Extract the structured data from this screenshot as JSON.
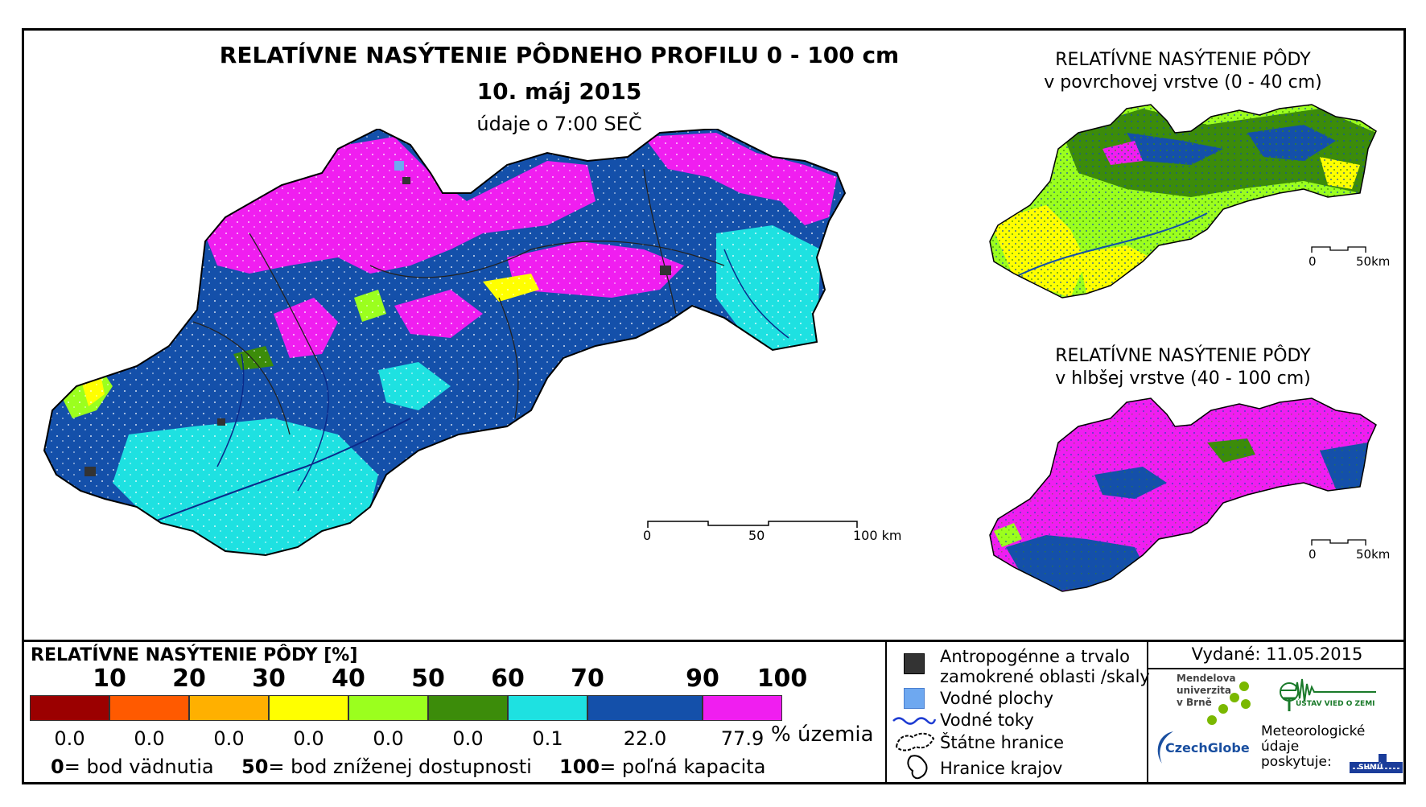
{
  "main": {
    "title": "RELATÍVNE NASÝTENIE PÔDNEHO PROFILU 0 - 100 cm",
    "date": "10. máj 2015",
    "time_note": "údaje o 7:00 SEČ",
    "scale": {
      "labels": [
        "0",
        "50",
        "100 km"
      ]
    }
  },
  "inset_top": {
    "title_line1": "RELATÍVNE NASÝTENIE PÔDY",
    "title_line2": "v povrchovej vrstve (0 - 40 cm)",
    "scale": {
      "labels": [
        "0",
        "50km"
      ]
    }
  },
  "inset_bottom": {
    "title_line1": "RELATÍVNE NASÝTENIE PÔDY",
    "title_line2": "v hlbšej vrstve (40 - 100 cm)",
    "scale": {
      "labels": [
        "0",
        "50km"
      ]
    }
  },
  "legend": {
    "title": "RELATÍVNE NASÝTENIE PÔDY [%]",
    "breaks": [
      "10",
      "20",
      "30",
      "40",
      "50",
      "60",
      "70",
      "90",
      "100"
    ],
    "classes": [
      {
        "color": "#9b0000",
        "percent": "0.0"
      },
      {
        "color": "#ff5a00",
        "percent": "0.0"
      },
      {
        "color": "#ffb000",
        "percent": "0.0"
      },
      {
        "color": "#ffff00",
        "percent": "0.0"
      },
      {
        "color": "#9bff1e",
        "percent": "0.0"
      },
      {
        "color": "#3c8c0a",
        "percent": "0.0"
      },
      {
        "color": "#1ee1e1",
        "percent": "0.1"
      },
      {
        "color": "#1450aa",
        "percent": "22.0"
      },
      {
        "color": "#f01ef0",
        "percent": "77.9"
      }
    ],
    "unit": "% územia",
    "notes": [
      {
        "value": "0",
        "text": "= bod vädnutia"
      },
      {
        "value": "50",
        "text": "= bod zníženej dostupnosti"
      },
      {
        "value": "100",
        "text": "= poľná kapacita"
      }
    ]
  },
  "map_legend": {
    "items": [
      {
        "icon": "anthropogenic-area-icon",
        "text_line1": "Antropogénne a trvalo",
        "text_line2": "zamokrené oblasti /skaly"
      },
      {
        "icon": "water-area-icon",
        "text_line1": "Vodné plochy"
      },
      {
        "icon": "river-line-icon",
        "text_line1": "Vodné toky"
      },
      {
        "icon": "state-border-icon",
        "text_line1": "Štátne hranice"
      },
      {
        "icon": "region-border-icon",
        "text_line1": "Hranice krajov"
      }
    ]
  },
  "issued": "Vydané: 11.05.2015",
  "logos": {
    "mendel_line1": "Mendelova",
    "mendel_line2": "univerzita",
    "mendel_line3": "v Brně",
    "czechglobe": "CzechGlobe",
    "usvz": "ÚSTAV VIED O ZEMI",
    "meteo_line1": "Meteorologické",
    "meteo_line2": "údaje",
    "meteo_line3": "poskytuje:",
    "shmu": "SHMÚ"
  },
  "colors": {
    "magenta": "#f01ef0",
    "dark_blue": "#1450aa",
    "cyan": "#1ee1e1",
    "yellow": "#ffff00",
    "green": "#3c8c0a",
    "light_green": "#9bff1e"
  }
}
